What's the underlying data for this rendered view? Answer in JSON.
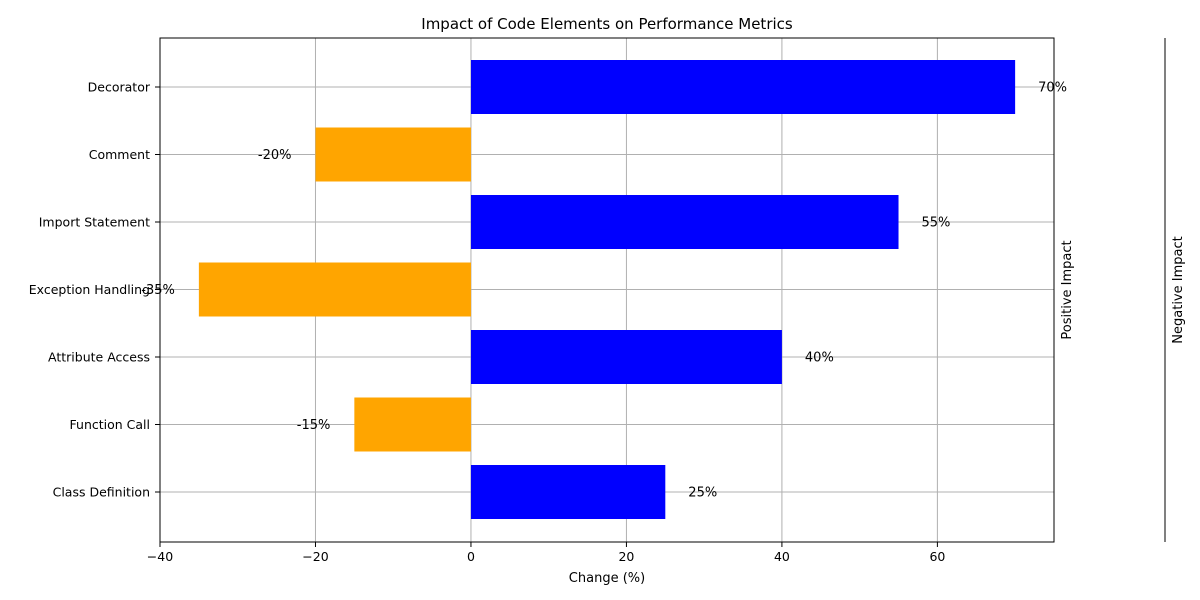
{
  "chart_data": {
    "type": "bar",
    "orientation": "horizontal",
    "title": "Impact of Code Elements on Performance Metrics",
    "xlabel": "Change (%)",
    "ylabel": "",
    "categories": [
      "Class Definition",
      "Function Call",
      "Attribute Access",
      "Exception Handling",
      "Import Statement",
      "Comment",
      "Decorator"
    ],
    "values": [
      25,
      -15,
      40,
      -35,
      55,
      -20,
      70
    ],
    "data_labels": [
      "25%",
      "-15%",
      "40%",
      "-35%",
      "55%",
      "-20%",
      "70%"
    ],
    "xlim": [
      -40,
      75
    ],
    "xticks": [
      -40,
      -20,
      0,
      20,
      40,
      60
    ],
    "xtick_labels": [
      "−40",
      "−20",
      "0",
      "20",
      "40",
      "60"
    ],
    "grid": true,
    "colors": {
      "positive": "#0000ff",
      "negative": "#ffa500"
    },
    "secondary_axis_labels": [
      "Positive Impact",
      "Negative Impact"
    ]
  }
}
